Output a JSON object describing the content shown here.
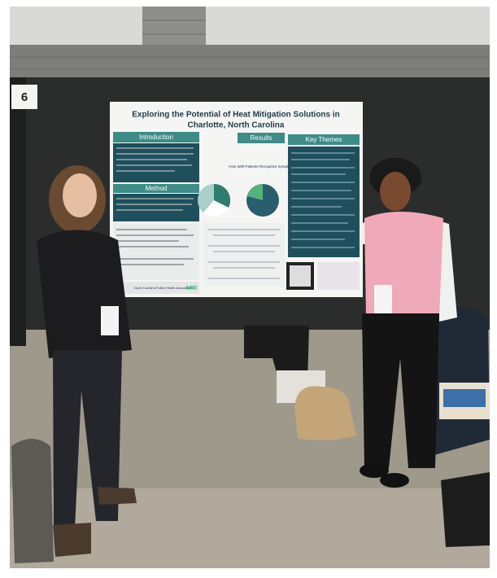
{
  "board_number": "6",
  "poster": {
    "title_lines": [
      "Exploring the Potential of Heat Mitigation Solutions in",
      "Charlotte, North Carolina"
    ],
    "sections": [
      "Introduction",
      "Results",
      "Key Themes",
      "Method"
    ],
    "results_heading": "How Well Patients Recognize Symptoms",
    "footer": "North Carolina Public Health Association",
    "logo": "AIRE"
  }
}
